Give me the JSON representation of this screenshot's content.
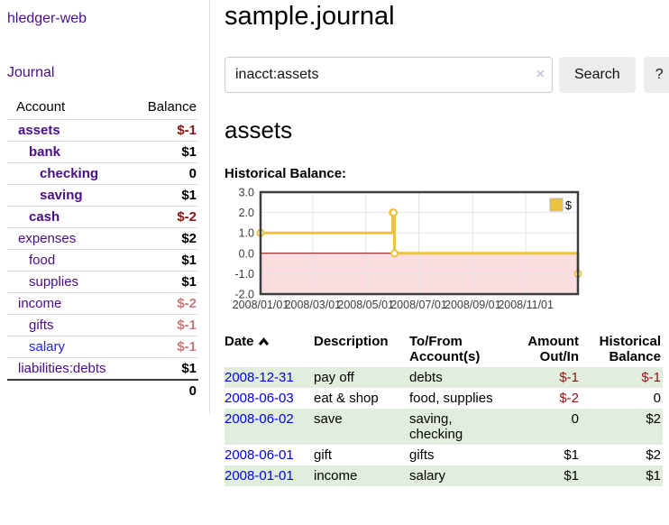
{
  "app": {
    "title": "hledger-web",
    "nav_journal": "Journal"
  },
  "colors": {
    "link_purple": "#4a0d8a",
    "link_blue": "#0000e0",
    "negative_dark": "#8b1414",
    "negative_light": "#c47a7a",
    "row_green": "#e2eedd",
    "series_gold": "#edc240"
  },
  "sidebar": {
    "header": {
      "account": "Account",
      "balance": "Balance"
    },
    "accounts": [
      {
        "name": "assets",
        "balance": "$-1",
        "level": 1,
        "bold": true,
        "neg": "dark"
      },
      {
        "name": "bank",
        "balance": "$1",
        "level": 2,
        "bold": true,
        "neg": null
      },
      {
        "name": "checking",
        "balance": "0",
        "level": 3,
        "bold": true,
        "neg": null
      },
      {
        "name": "saving",
        "balance": "$1",
        "level": 3,
        "bold": true,
        "neg": null
      },
      {
        "name": "cash",
        "balance": "$-2",
        "level": 2,
        "bold": true,
        "neg": "dark"
      },
      {
        "name": "expenses",
        "balance": "$2",
        "level": 1,
        "bold": false,
        "neg": null
      },
      {
        "name": "food",
        "balance": "$1",
        "level": 2,
        "bold": false,
        "neg": null
      },
      {
        "name": "supplies",
        "balance": "$1",
        "level": 2,
        "bold": false,
        "neg": null
      },
      {
        "name": "income",
        "balance": "$-2",
        "level": 1,
        "bold": false,
        "neg": "light"
      },
      {
        "name": "gifts",
        "balance": "$-1",
        "level": 2,
        "bold": false,
        "neg": "light"
      },
      {
        "name": "salary",
        "balance": "$-1",
        "level": 2,
        "bold": false,
        "neg": "light",
        "link_color": "blue"
      },
      {
        "name": "liabilities:debts",
        "balance": "$1",
        "level": 1,
        "bold": false,
        "neg": null
      }
    ],
    "total": "0"
  },
  "main": {
    "title": "sample.journal",
    "search": {
      "value": "inacct:assets",
      "clear_icon": "×",
      "button": "Search",
      "help_button": "?"
    },
    "account_heading": "assets",
    "chart_label": "Historical Balance:"
  },
  "chart_data": {
    "type": "line",
    "step": true,
    "title": "Historical Balance",
    "series": [
      {
        "name": "$",
        "color": "#edc240",
        "points": [
          [
            "2008-01-01",
            1
          ],
          [
            "2008-06-01",
            2
          ],
          [
            "2008-06-02",
            2
          ],
          [
            "2008-06-03",
            0
          ],
          [
            "2008-12-31",
            -1
          ]
        ]
      }
    ],
    "xlim": [
      "2008-01-01",
      "2008-12-31"
    ],
    "ylim": [
      -2,
      3
    ],
    "y_ticks": [
      3.0,
      2.0,
      1.0,
      0.0,
      -1.0,
      -2.0
    ],
    "x_ticks": [
      "2008/01/01",
      "2008/03/01",
      "2008/05/01",
      "2008/07/01",
      "2008/09/01",
      "2008/11/01"
    ],
    "grid": true,
    "legend_position": "top-right",
    "negative_region_fill": "#fbdee0",
    "zero_line_color": "#8b0000",
    "border_color": "#3d3d3d"
  },
  "register": {
    "headers": {
      "date": "Date",
      "description": "Description",
      "accounts": "To/From Account(s)",
      "amount": "Amount Out/In",
      "balance": "Historical Balance"
    },
    "rows": [
      {
        "date": "2008-12-31",
        "description": "pay off",
        "accounts": [
          "debts"
        ],
        "amount": "$-1",
        "amount_neg": true,
        "balance": "$-1",
        "balance_neg": true
      },
      {
        "date": "2008-06-03",
        "description": "eat & shop",
        "accounts": [
          "food,",
          "supplies"
        ],
        "amount": "$-2",
        "amount_neg": true,
        "balance": "0",
        "balance_neg": false
      },
      {
        "date": "2008-06-02",
        "description": "save",
        "accounts": [
          "saving,",
          "checking"
        ],
        "amount": "0",
        "amount_neg": false,
        "balance": "$2",
        "balance_neg": false
      },
      {
        "date": "2008-06-01",
        "description": "gift",
        "accounts": [
          "gifts"
        ],
        "amount": "$1",
        "amount_neg": false,
        "balance": "$2",
        "balance_neg": false
      },
      {
        "date": "2008-01-01",
        "description": "income",
        "accounts": [
          "salary"
        ],
        "amount": "$1",
        "amount_neg": false,
        "balance": "$1",
        "balance_neg": false
      }
    ]
  }
}
